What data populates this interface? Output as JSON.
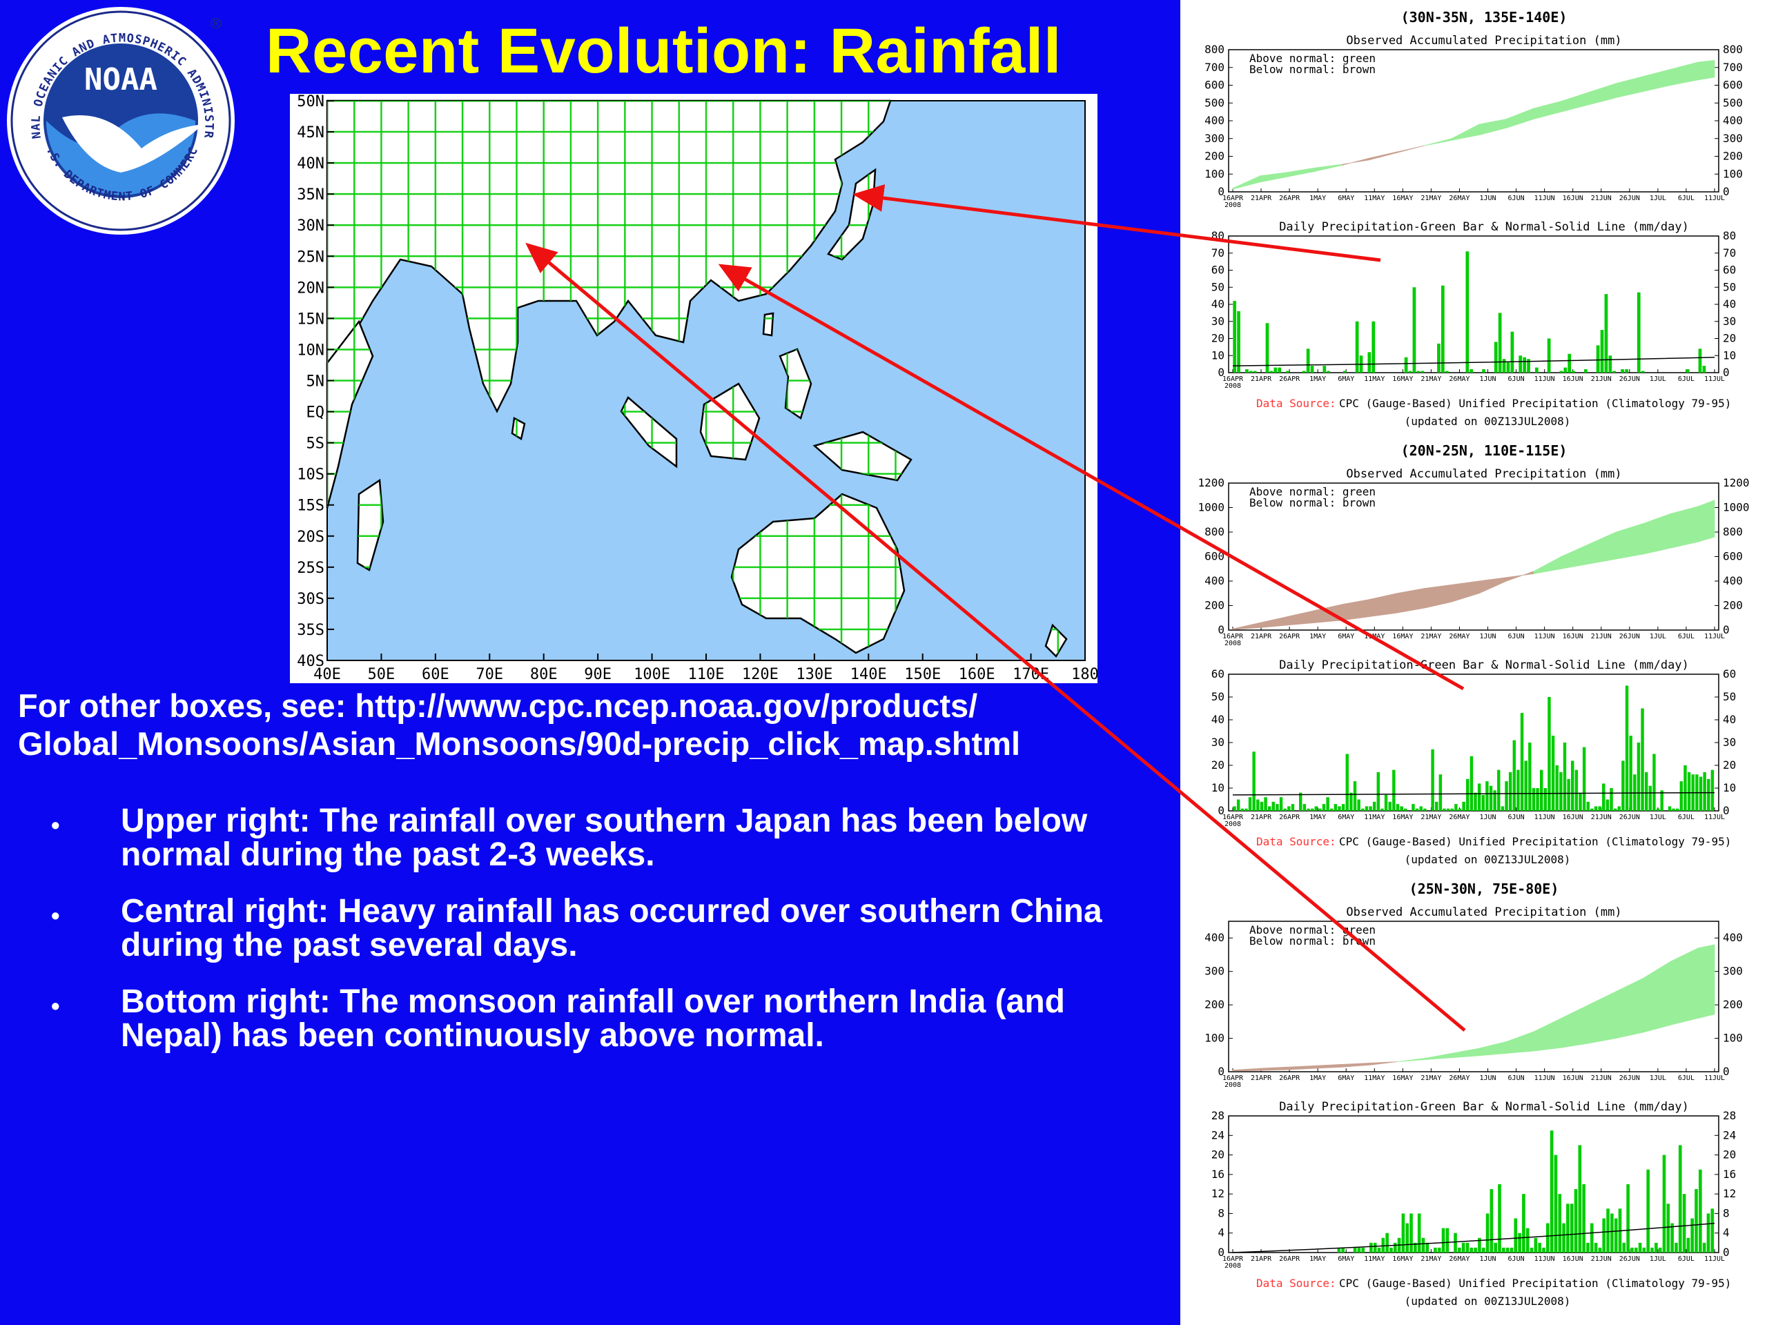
{
  "slide": {
    "title": "Recent Evolution: Rainfall",
    "logo": {
      "wordmark": "NOAA",
      "ring_text": "NATIONAL OCEANIC AND ATMOSPHERIC ADMINISTRATION",
      "bottom_text": "U.S. DEPARTMENT OF COMMERCE",
      "registered": "®"
    },
    "reference_text": "For other boxes, see: http://www.cpc.ncep.noaa.gov/products/ Global_Monsoons/Asian_Monsoons/90d-precip_click_map.shtml",
    "bullet_glyph": "•",
    "bullets": [
      "Upper right: The rainfall over southern Japan has been below normal during the past 2-3 weeks.",
      "Central right: Heavy rainfall has occurred over southern China during the past several days.",
      "Bottom right: The monsoon rainfall over northern India (and Nepal) has been continuously above normal."
    ],
    "colors": {
      "background": "#0a07f0",
      "title": "#ffff00",
      "arrow": "#ee1111",
      "ocean": "#99ccf8",
      "grid": "#00cc00",
      "above": "#99ee99",
      "below": "#c8a090",
      "bar": "#00cc00",
      "source_label": "#ff3333"
    }
  },
  "map": {
    "lat_labels": [
      "50N",
      "45N",
      "40N",
      "35N",
      "30N",
      "25N",
      "20N",
      "15N",
      "10N",
      "5N",
      "EQ",
      "5S",
      "10S",
      "15S",
      "20S",
      "25S",
      "30S",
      "35S",
      "40S"
    ],
    "lon_labels": [
      "40E",
      "50E",
      "60E",
      "70E",
      "80E",
      "90E",
      "100E",
      "110E",
      "120E",
      "130E",
      "140E",
      "150E",
      "160E",
      "170E",
      "180"
    ]
  },
  "chart_data": [
    {
      "type": "area",
      "region": "(30N-35N, 135E-140E)",
      "title": "Observed Accumulated Precipitation (mm)",
      "legend": [
        "Above normal: green",
        "Below normal: brown"
      ],
      "x_ticks": [
        "16APR",
        "21APR",
        "26APR",
        "1MAY",
        "6MAY",
        "11MAY",
        "16MAY",
        "21MAY",
        "26MAY",
        "1JUN",
        "6JUN",
        "11JUN",
        "16JUN",
        "21JUN",
        "26JUN",
        "1JUL",
        "6JUL",
        "11JUL"
      ],
      "year": "2008",
      "ylim": [
        0,
        800
      ],
      "y_ticks": [
        0,
        100,
        200,
        300,
        400,
        500,
        600,
        700,
        800
      ],
      "x": [
        0,
        5,
        10,
        15,
        20,
        25,
        30,
        35,
        40,
        45,
        50,
        55,
        60,
        65,
        70,
        75,
        80,
        85,
        88
      ],
      "observed": [
        20,
        90,
        110,
        135,
        155,
        180,
        220,
        260,
        300,
        380,
        410,
        470,
        510,
        560,
        610,
        650,
        690,
        730,
        740
      ],
      "normal": [
        15,
        55,
        85,
        115,
        150,
        190,
        225,
        260,
        290,
        320,
        360,
        410,
        450,
        490,
        530,
        565,
        600,
        630,
        645
      ]
    },
    {
      "type": "bar",
      "region": "(30N-35N, 135E-140E)",
      "title": "Daily Precipitation-Green Bar & Normal-Solid Line (mm/day)",
      "x_ticks": [
        "16APR",
        "21APR",
        "26APR",
        "1MAY",
        "6MAY",
        "11MAY",
        "16MAY",
        "21MAY",
        "26MAY",
        "1JUN",
        "6JUN",
        "11JUN",
        "16JUN",
        "21JUN",
        "26JUN",
        "1JUL",
        "6JUL",
        "11JUL"
      ],
      "year": "2008",
      "ylim": [
        0,
        80
      ],
      "y_ticks": [
        0,
        10,
        20,
        30,
        40,
        50,
        60,
        70,
        80
      ],
      "bars": [
        42,
        36,
        0,
        2,
        1,
        1,
        0,
        0,
        29,
        1,
        3,
        3,
        0,
        1,
        0,
        0,
        0,
        1,
        14,
        4,
        0,
        0,
        4,
        1,
        0,
        0,
        0,
        1,
        0,
        0,
        30,
        10,
        0,
        12,
        30,
        0,
        0,
        0,
        0,
        0,
        0,
        0,
        9,
        1,
        50,
        1,
        1,
        0,
        0,
        0,
        17,
        51,
        1,
        0,
        0,
        0,
        0,
        71,
        2,
        0,
        0,
        2,
        0,
        0,
        18,
        35,
        8,
        6,
        24,
        0,
        10,
        9,
        8,
        0,
        3,
        0,
        0,
        20,
        0,
        0,
        1,
        3,
        11,
        1,
        0,
        0,
        2,
        0,
        0,
        16,
        25,
        46,
        10,
        1,
        0,
        2,
        2,
        0,
        0,
        47,
        1,
        0,
        0,
        0,
        0,
        0,
        0,
        0,
        0,
        0,
        0,
        2,
        0,
        0,
        14,
        4,
        0,
        0
      ],
      "normal_line": [
        4,
        9
      ],
      "source": {
        "label": "Data Source:",
        "text": "CPC (Gauge-Based) Unified Precipitation (Climatology 79-95)",
        "updated": "(updated on 00Z13JUL2008)"
      }
    },
    {
      "type": "area",
      "region": "(20N-25N, 110E-115E)",
      "title": "Observed Accumulated Precipitation (mm)",
      "legend": [
        "Above normal: green",
        "Below normal: brown"
      ],
      "x_ticks": [
        "16APR",
        "21APR",
        "26APR",
        "1MAY",
        "6MAY",
        "11MAY",
        "16MAY",
        "21MAY",
        "26MAY",
        "1JUN",
        "6JUN",
        "11JUN",
        "16JUN",
        "21JUN",
        "26JUN",
        "1JUL",
        "6JUL",
        "11JUL"
      ],
      "year": "2008",
      "ylim": [
        0,
        1200
      ],
      "y_ticks": [
        0,
        200,
        400,
        600,
        800,
        1000,
        1200
      ],
      "x": [
        0,
        5,
        10,
        15,
        20,
        25,
        30,
        35,
        40,
        45,
        50,
        55,
        60,
        65,
        70,
        75,
        80,
        85,
        88
      ],
      "observed": [
        5,
        20,
        40,
        60,
        80,
        110,
        140,
        180,
        230,
        300,
        400,
        480,
        600,
        700,
        800,
        870,
        950,
        1010,
        1060
      ],
      "normal": [
        10,
        60,
        110,
        160,
        210,
        250,
        300,
        340,
        370,
        400,
        430,
        460,
        500,
        540,
        580,
        620,
        670,
        720,
        760
      ]
    },
    {
      "type": "bar",
      "region": "(20N-25N, 110E-115E)",
      "title": "Daily Precipitation-Green Bar & Normal-Solid Line (mm/day)",
      "x_ticks": [
        "16APR",
        "21APR",
        "26APR",
        "1MAY",
        "6MAY",
        "11MAY",
        "16MAY",
        "21MAY",
        "26MAY",
        "1JUN",
        "6JUN",
        "11JUN",
        "16JUN",
        "21JUN",
        "26JUN",
        "1JUL",
        "6JUL",
        "11JUL"
      ],
      "year": "2008",
      "ylim": [
        0,
        60
      ],
      "y_ticks": [
        0,
        10,
        20,
        30,
        40,
        50,
        60
      ],
      "bars": [
        2,
        5,
        1,
        1,
        6,
        26,
        5,
        4,
        6,
        2,
        4,
        3,
        6,
        1,
        2,
        3,
        0,
        8,
        3,
        1,
        1,
        2,
        1,
        3,
        6,
        1,
        3,
        2,
        3,
        25,
        8,
        13,
        5,
        1,
        2,
        2,
        4,
        17,
        1,
        7,
        4,
        18,
        3,
        2,
        1,
        0,
        3,
        1,
        2,
        1,
        0,
        27,
        4,
        16,
        1,
        1,
        1,
        3,
        1,
        4,
        14,
        24,
        8,
        12,
        7,
        13,
        11,
        9,
        18,
        2,
        13,
        17,
        31,
        18,
        43,
        22,
        30,
        10,
        10,
        18,
        10,
        50,
        33,
        20,
        17,
        30,
        14,
        22,
        18,
        8,
        28,
        4,
        1,
        2,
        2,
        12,
        5,
        10,
        1,
        2,
        22,
        55,
        33,
        16,
        30,
        45,
        17,
        11,
        25,
        1,
        9,
        0,
        2,
        1,
        1,
        13,
        20,
        17,
        16,
        16,
        15,
        17,
        14,
        18
      ],
      "normal_line": [
        7,
        8
      ],
      "source": {
        "label": "Data Source:",
        "text": "CPC (Gauge-Based) Unified Precipitation (Climatology 79-95)",
        "updated": "(updated on 00Z13JUL2008)"
      }
    },
    {
      "type": "area",
      "region": "(25N-30N, 75E-80E)",
      "title": "Observed Accumulated Precipitation (mm)",
      "legend": [
        "Above normal: green",
        "Below normal: brown"
      ],
      "x_ticks": [
        "16APR",
        "21APR",
        "26APR",
        "1MAY",
        "6MAY",
        "11MAY",
        "16MAY",
        "21MAY",
        "26MAY",
        "1JUN",
        "6JUN",
        "11JUN",
        "16JUN",
        "21JUN",
        "26JUN",
        "1JUL",
        "6JUL",
        "11JUL"
      ],
      "year": "2008",
      "ylim": [
        0,
        450
      ],
      "y_ticks": [
        0,
        100,
        200,
        300,
        400
      ],
      "x": [
        0,
        5,
        10,
        15,
        20,
        25,
        30,
        35,
        40,
        45,
        50,
        55,
        60,
        65,
        70,
        75,
        80,
        85,
        88
      ],
      "observed": [
        2,
        4,
        6,
        10,
        14,
        20,
        30,
        40,
        55,
        70,
        90,
        120,
        160,
        200,
        240,
        280,
        330,
        370,
        380
      ],
      "normal": [
        5,
        10,
        14,
        18,
        22,
        26,
        30,
        36,
        42,
        48,
        55,
        62,
        72,
        85,
        100,
        118,
        140,
        160,
        172
      ]
    },
    {
      "type": "bar",
      "region": "(25N-30N, 75E-80E)",
      "title": "Daily Precipitation-Green Bar & Normal-Solid Line (mm/day)",
      "x_ticks": [
        "16APR",
        "21APR",
        "26APR",
        "1MAY",
        "6MAY",
        "11MAY",
        "16MAY",
        "21MAY",
        "26MAY",
        "1JUN",
        "6JUN",
        "11JUN",
        "16JUN",
        "21JUN",
        "26JUN",
        "1JUL",
        "6JUL",
        "11JUL"
      ],
      "year": "2008",
      "ylim": [
        0,
        28
      ],
      "y_ticks": [
        0,
        4,
        8,
        12,
        16,
        20,
        24,
        28
      ],
      "bars": [
        0,
        0,
        0,
        0,
        0,
        0,
        0,
        0,
        0,
        0,
        0,
        0,
        0,
        0,
        0,
        0,
        0,
        0,
        0,
        0,
        0,
        0,
        0,
        0,
        0,
        0,
        1,
        1,
        0,
        0,
        1,
        1,
        1,
        0,
        2,
        2,
        1,
        3,
        4,
        1,
        2,
        3,
        8,
        6,
        8,
        2,
        8,
        3,
        2,
        0,
        1,
        1,
        5,
        5,
        0,
        4,
        1,
        2,
        2,
        1,
        1,
        3,
        1,
        8,
        13,
        2,
        14,
        1,
        1,
        1,
        7,
        4,
        12,
        5,
        1,
        3,
        2,
        1,
        6,
        25,
        20,
        12,
        6,
        10,
        10,
        13,
        22,
        14,
        2,
        6,
        2,
        1,
        7,
        9,
        8,
        7,
        9,
        2,
        14,
        1,
        1,
        2,
        1,
        17,
        1,
        2,
        1,
        20,
        10,
        6,
        2,
        22,
        12,
        3,
        7,
        13,
        17,
        2,
        8,
        9
      ],
      "normal_line": [
        0,
        6
      ],
      "source": {
        "label": "Data Source:",
        "text": "CPC (Gauge-Based) Unified Precipitation (Climatology 79-95)",
        "updated": "(updated on 00Z13JUL2008)"
      }
    }
  ]
}
